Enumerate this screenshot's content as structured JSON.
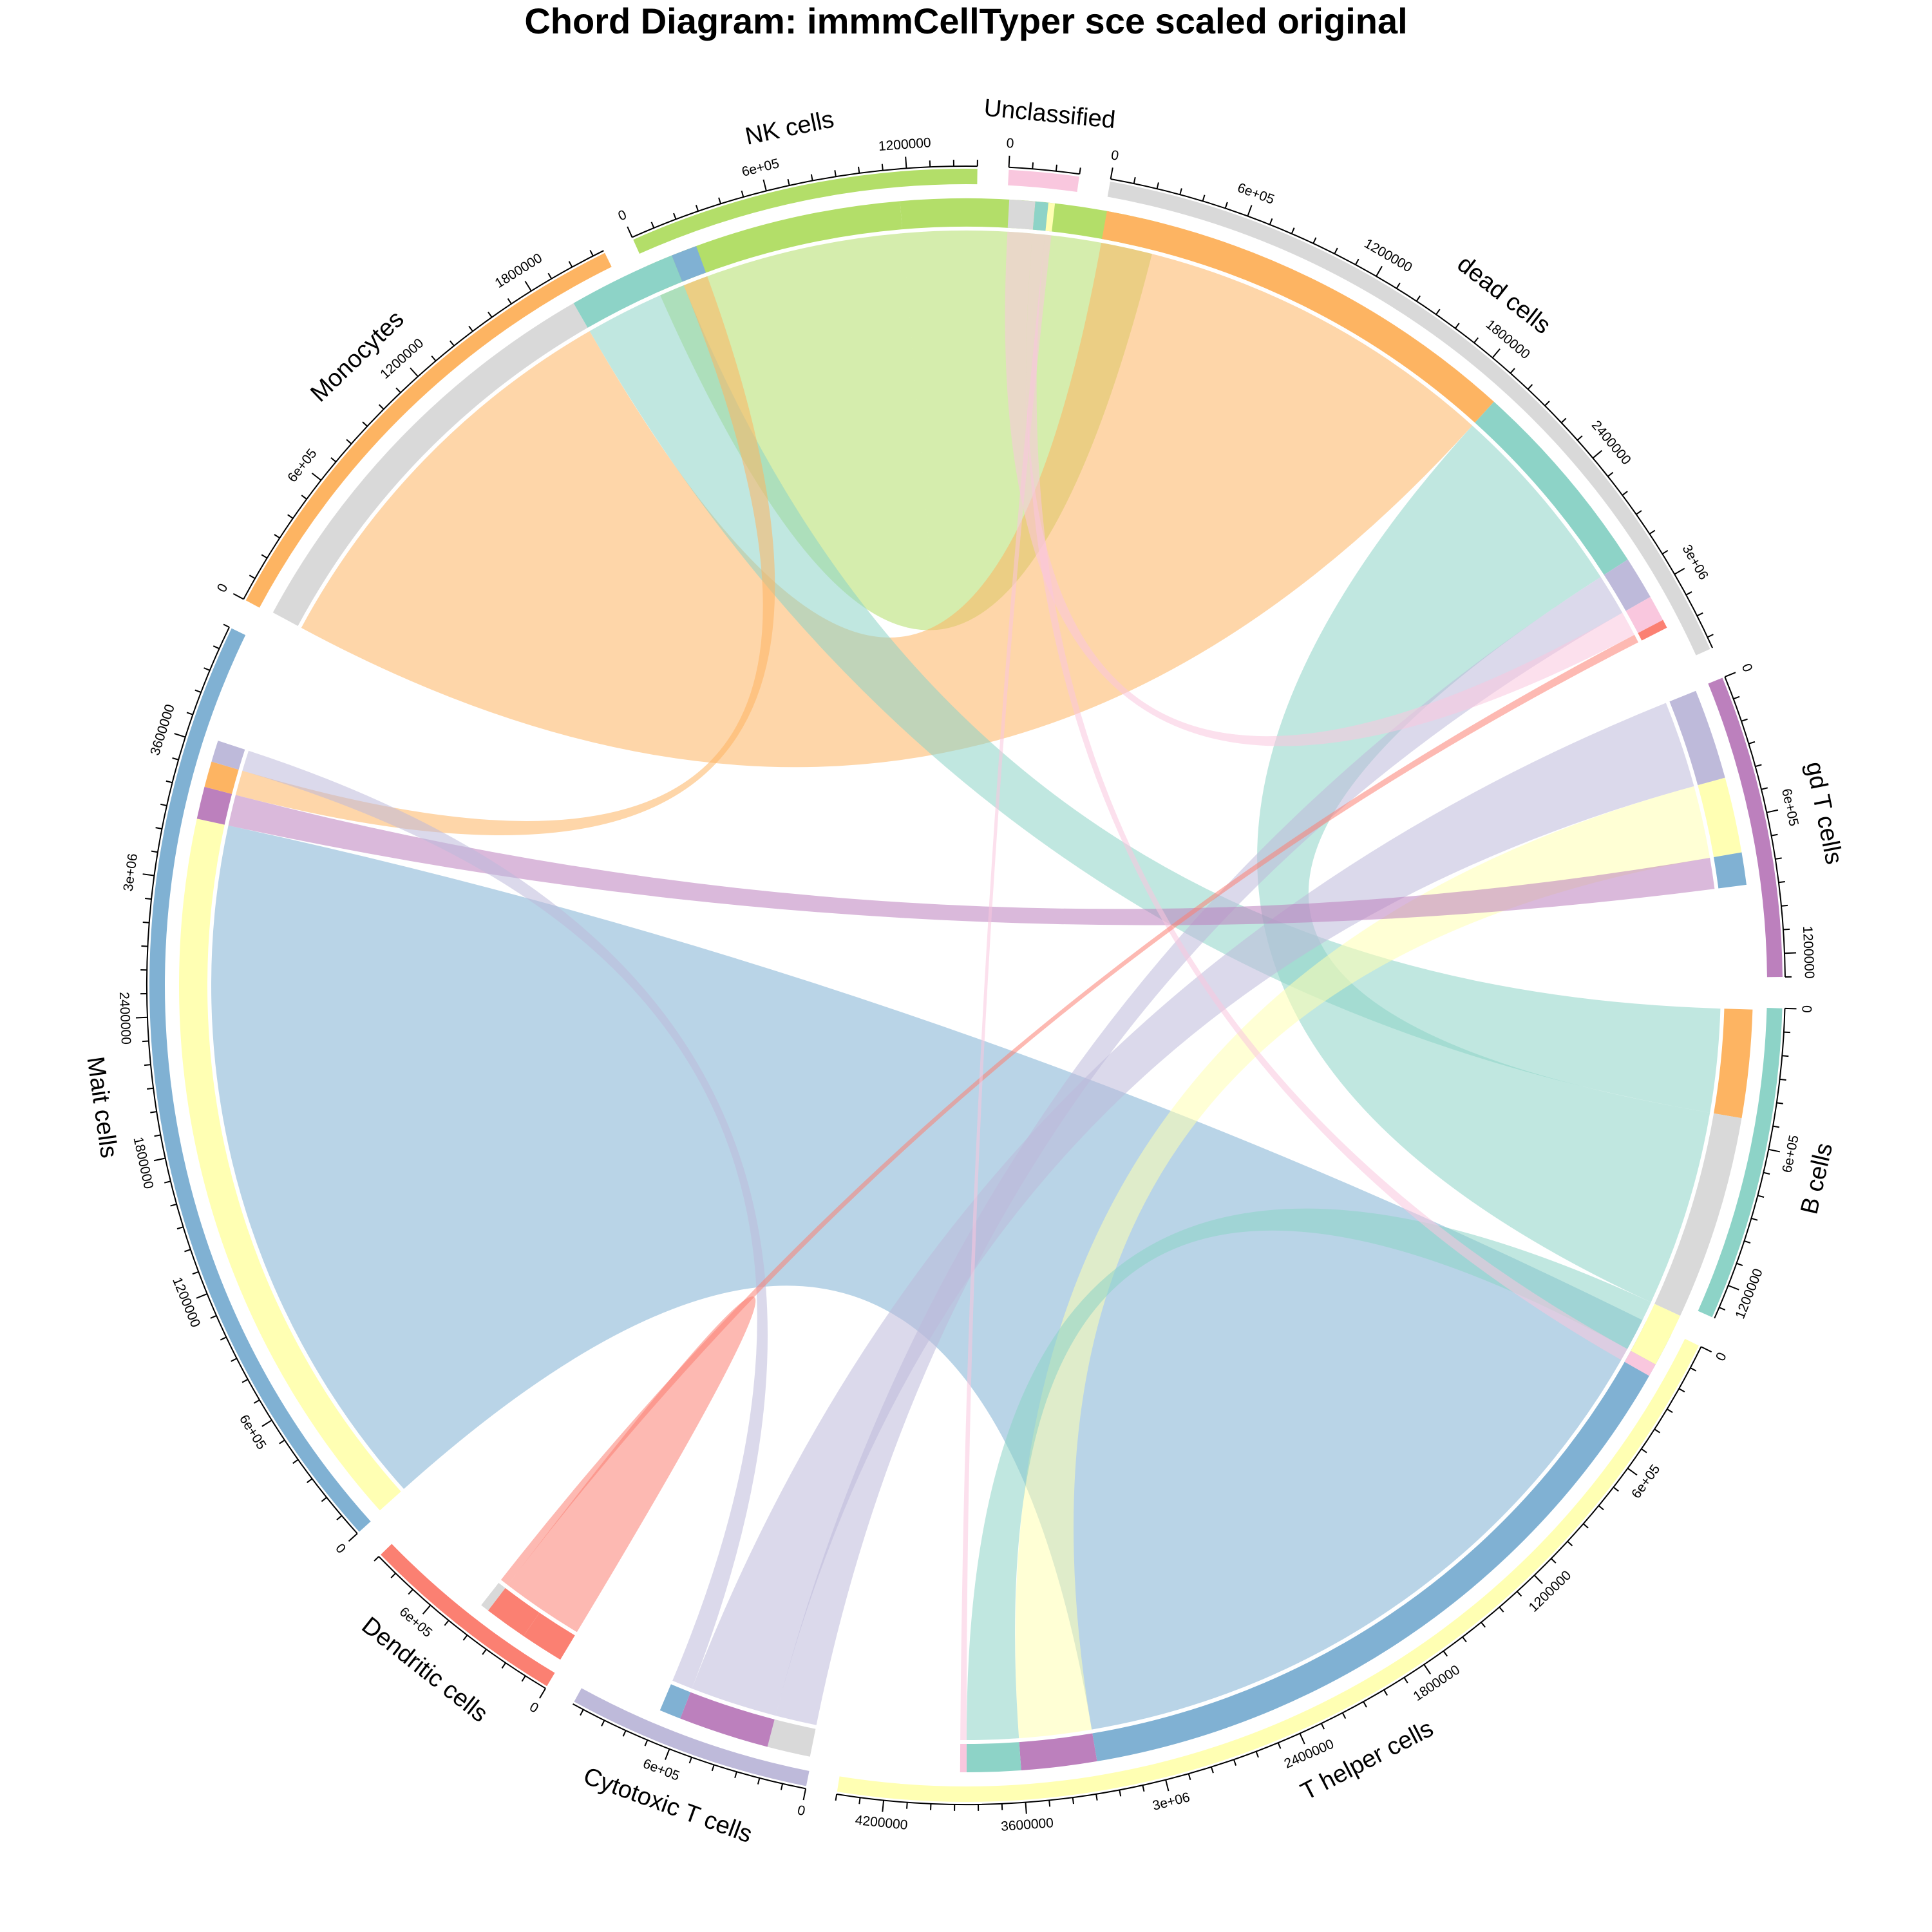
{
  "title": "Chord Diagram: immmCellTyper sce scaled original",
  "chart_data": {
    "type": "chord",
    "title": "Chord Diagram: immmCellTyper sce scaled original",
    "sectors": [
      {
        "name": "Unclassified",
        "total": 300000,
        "color": "#F9C7DE",
        "ticks": [
          {
            "value": 0,
            "label": "0"
          }
        ]
      },
      {
        "name": "dead cells",
        "total": 3350000,
        "color": "#D9D9D9",
        "ticks": [
          {
            "value": 0,
            "label": "0"
          },
          {
            "value": 600000,
            "label": "6e+05"
          },
          {
            "value": 1200000,
            "label": "1200000"
          },
          {
            "value": 1800000,
            "label": "1800000"
          },
          {
            "value": 2400000,
            "label": "2400000"
          },
          {
            "value": 3000000,
            "label": "3e+06"
          }
        ]
      },
      {
        "name": "gd T cells",
        "total": 1300000,
        "color": "#BC80BD",
        "ticks": [
          {
            "value": 0,
            "label": "0"
          },
          {
            "value": 600000,
            "label": "6e+05"
          },
          {
            "value": 1200000,
            "label": "1200000"
          }
        ]
      },
      {
        "name": "B cells",
        "total": 1350000,
        "color": "#8DD3C7",
        "ticks": [
          {
            "value": 0,
            "label": "0"
          },
          {
            "value": 600000,
            "label": "6e+05"
          },
          {
            "value": 1200000,
            "label": "1200000"
          }
        ]
      },
      {
        "name": "T helper cells",
        "total": 4400000,
        "color": "#FFFFB3",
        "ticks": [
          {
            "value": 0,
            "label": "0"
          },
          {
            "value": 600000,
            "label": "6e+05"
          },
          {
            "value": 1200000,
            "label": "1200000"
          },
          {
            "value": 1800000,
            "label": "1800000"
          },
          {
            "value": 2400000,
            "label": "2400000"
          },
          {
            "value": 3000000,
            "label": "3e+06"
          },
          {
            "value": 3600000,
            "label": "3600000"
          },
          {
            "value": 4200000,
            "label": "4200000"
          }
        ]
      },
      {
        "name": "Cytotoxic T cells",
        "total": 1050000,
        "color": "#BEBADA",
        "ticks": [
          {
            "value": 0,
            "label": "0"
          },
          {
            "value": 600000,
            "label": "6e+05"
          }
        ]
      },
      {
        "name": "Dendritic cells",
        "total": 900000,
        "color": "#FB8072",
        "ticks": [
          {
            "value": 0,
            "label": "0"
          },
          {
            "value": 600000,
            "label": "6e+05"
          }
        ]
      },
      {
        "name": "Mait cells",
        "total": 4100000,
        "color": "#80B1D3",
        "ticks": [
          {
            "value": 0,
            "label": "0"
          },
          {
            "value": 600000,
            "label": "6e+05"
          },
          {
            "value": 1200000,
            "label": "1200000"
          },
          {
            "value": 1800000,
            "label": "1800000"
          },
          {
            "value": 2400000,
            "label": "2400000"
          },
          {
            "value": 3000000,
            "label": "3e+06"
          },
          {
            "value": 3600000,
            "label": "3600000"
          }
        ]
      },
      {
        "name": "Monocytes",
        "total": 2150000,
        "color": "#FDB462",
        "ticks": [
          {
            "value": 0,
            "label": "0"
          },
          {
            "value": 600000,
            "label": "6e+05"
          },
          {
            "value": 1200000,
            "label": "1200000"
          },
          {
            "value": 1800000,
            "label": "1800000"
          }
        ]
      },
      {
        "name": "NK cells",
        "total": 1500000,
        "color": "#B3DE69",
        "ticks": [
          {
            "value": 0,
            "label": "0"
          },
          {
            "value": 600000,
            "label": "6e+05"
          },
          {
            "value": 1200000,
            "label": "1200000"
          }
        ]
      }
    ],
    "links": [
      {
        "source": "NK cells",
        "target": "NK cells",
        "value": 1200000
      },
      {
        "source": "Monocytes",
        "target": "dead cells",
        "value": 2000000
      },
      {
        "source": "B cells",
        "target": "Monocytes",
        "value": 500000
      },
      {
        "source": "B cells",
        "target": "dead cells",
        "value": 950000
      },
      {
        "source": "Mait cells",
        "target": "T helper cells",
        "value": 3400000
      },
      {
        "source": "Cytotoxic T cells",
        "target": "dead cells",
        "value": 200000
      },
      {
        "source": "Cytotoxic T cells",
        "target": "gd T cells",
        "value": 420000
      },
      {
        "source": "T helper cells",
        "target": "gd T cells",
        "value": 350000
      },
      {
        "source": "B cells",
        "target": "T helper cells",
        "value": 250000
      },
      {
        "source": "gd T cells",
        "target": "Mait cells",
        "value": 150000
      },
      {
        "source": "Dendritic cells",
        "target": "Dendritic cells",
        "value": 200000
      },
      {
        "source": "Unclassified",
        "target": "dead cells",
        "value": 120000
      },
      {
        "source": "Unclassified",
        "target": "B cells",
        "value": 60000
      },
      {
        "source": "Monocytes",
        "target": "Mait cells",
        "value": 120000
      },
      {
        "source": "Cytotoxic T cells",
        "target": "Mait cells",
        "value": 100000
      },
      {
        "source": "Dendritic cells",
        "target": "dead cells",
        "value": 40000
      },
      {
        "source": "Unclassified",
        "target": "T helper cells",
        "value": 30000
      }
    ]
  }
}
